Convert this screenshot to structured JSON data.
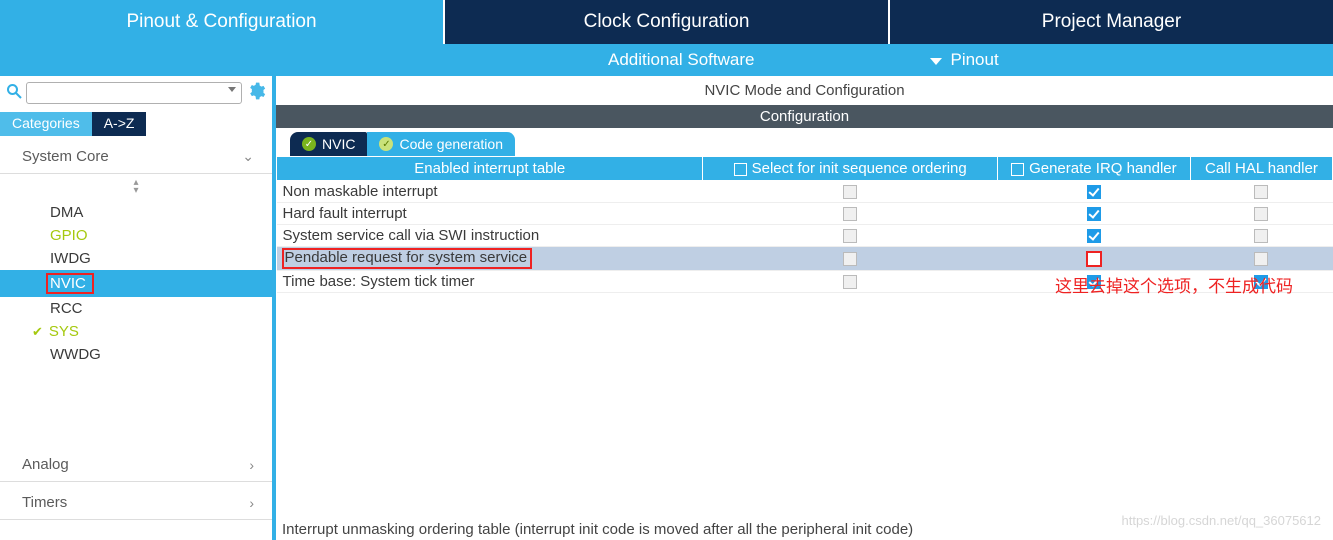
{
  "colors": {
    "primary": "#32b0e6",
    "nav_dark": "#0d2b52",
    "config_bar": "#4a5660",
    "green": "#a5c90f",
    "red_highlight": "#e22222",
    "checkbox_checked": "#1e9be8"
  },
  "topnav": {
    "tabs": [
      {
        "label": "Pinout & Configuration",
        "active": true
      },
      {
        "label": "Clock Configuration",
        "active": false
      },
      {
        "label": "Project Manager",
        "active": false
      }
    ]
  },
  "subnav": {
    "additional_software": "Additional Software",
    "pinout": "Pinout"
  },
  "sidebar": {
    "search_placeholder": "",
    "tabs": {
      "categories": "Categories",
      "az": "A->Z"
    },
    "sections": [
      {
        "name": "System Core",
        "expanded": true,
        "items": [
          {
            "label": "DMA",
            "green": false,
            "selected": false,
            "checked": false
          },
          {
            "label": "GPIO",
            "green": true,
            "selected": false,
            "checked": false
          },
          {
            "label": "IWDG",
            "green": false,
            "selected": false,
            "checked": false
          },
          {
            "label": "NVIC",
            "green": false,
            "selected": true,
            "checked": false,
            "red_box": true
          },
          {
            "label": "RCC",
            "green": false,
            "selected": false,
            "checked": false
          },
          {
            "label": "SYS",
            "green": true,
            "selected": false,
            "checked": true
          },
          {
            "label": "WWDG",
            "green": false,
            "selected": false,
            "checked": false
          }
        ]
      },
      {
        "name": "Analog",
        "expanded": false
      },
      {
        "name": "Timers",
        "expanded": false
      }
    ]
  },
  "content": {
    "title": "NVIC Mode and Configuration",
    "config_label": "Configuration",
    "inner_tabs": {
      "nvic": "NVIC",
      "codegen": "Code generation"
    },
    "table": {
      "headers": {
        "col1": "Enabled interrupt table",
        "col2": "Select for init sequence ordering",
        "col3": "Generate IRQ handler",
        "col4": "Call HAL handler"
      },
      "col_widths": [
        "420px",
        "290px",
        "190px",
        "140px"
      ],
      "rows": [
        {
          "label": "Non maskable interrupt",
          "select": "disabled",
          "irq": "checked",
          "hal": "disabled"
        },
        {
          "label": "Hard fault interrupt",
          "select": "disabled",
          "irq": "checked",
          "hal": "disabled"
        },
        {
          "label": "System service call via SWI instruction",
          "select": "disabled",
          "irq": "checked",
          "hal": "disabled"
        },
        {
          "label": "Pendable request for system service",
          "select": "disabled",
          "irq": "unchecked",
          "hal": "disabled",
          "selected": true,
          "red_label": true,
          "red_irq": true
        },
        {
          "label": "Time base: System tick timer",
          "select": "disabled",
          "irq": "checked",
          "hal": "checked"
        }
      ]
    },
    "annotation": "这里去掉这个选项，不生成代码",
    "footer": "Interrupt unmasking ordering table (interrupt init code is moved after all the peripheral init code)",
    "watermark": "https://blog.csdn.net/qq_36075612"
  }
}
